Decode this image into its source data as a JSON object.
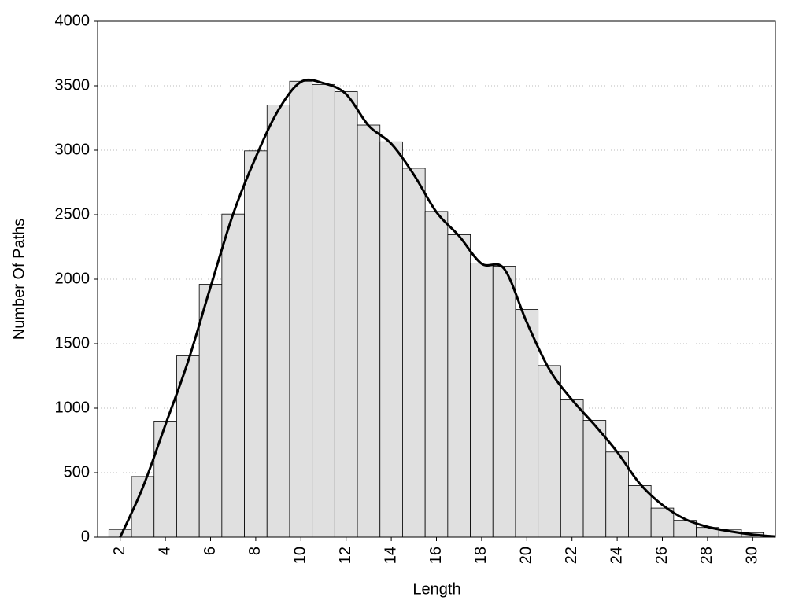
{
  "chart_data": {
    "type": "histogram",
    "xlabel": "Length",
    "ylabel": "Number Of Paths",
    "bins": [
      1.5,
      2.5,
      3.5,
      4.5,
      5.5,
      6.5,
      7.5,
      8.5,
      9.5,
      10.5,
      11.5,
      12.5,
      13.5,
      14.5,
      15.5,
      16.5,
      17.5,
      18.5,
      19.5,
      20.5,
      21.5,
      22.5,
      23.5,
      24.5,
      25.5,
      26.5,
      27.5,
      28.5,
      29.5,
      30.5
    ],
    "values": [
      60,
      470,
      900,
      1405,
      1960,
      2505,
      2995,
      3350,
      3535,
      3510,
      3455,
      3195,
      3065,
      2860,
      2525,
      2345,
      2125,
      2100,
      1765,
      1330,
      1070,
      905,
      660,
      400,
      225,
      130,
      75,
      60,
      35
    ],
    "color": "#e0e0e0",
    "line": {
      "color": "#000000",
      "x": [
        2,
        3,
        4,
        5,
        6,
        7,
        8,
        9,
        10,
        11,
        12,
        13,
        14,
        15,
        16,
        17,
        18,
        19,
        20,
        21,
        22,
        23,
        24,
        25,
        26,
        27,
        28,
        29,
        30,
        31
      ],
      "values": [
        0,
        385,
        870,
        1360,
        1940,
        2505,
        2945,
        3310,
        3530,
        3520,
        3435,
        3190,
        3050,
        2810,
        2520,
        2335,
        2120,
        2080,
        1665,
        1300,
        1065,
        870,
        660,
        415,
        250,
        140,
        80,
        45,
        20,
        5
      ]
    },
    "xlim": [
      1,
      31
    ],
    "xticks": [
      2,
      4,
      6,
      8,
      10,
      12,
      14,
      16,
      18,
      20,
      22,
      24,
      26,
      28,
      30
    ],
    "ylim": [
      0,
      4000
    ],
    "yticks": [
      0,
      500,
      1000,
      1500,
      2000,
      2500,
      3000,
      3500,
      4000
    ],
    "grid": true
  }
}
